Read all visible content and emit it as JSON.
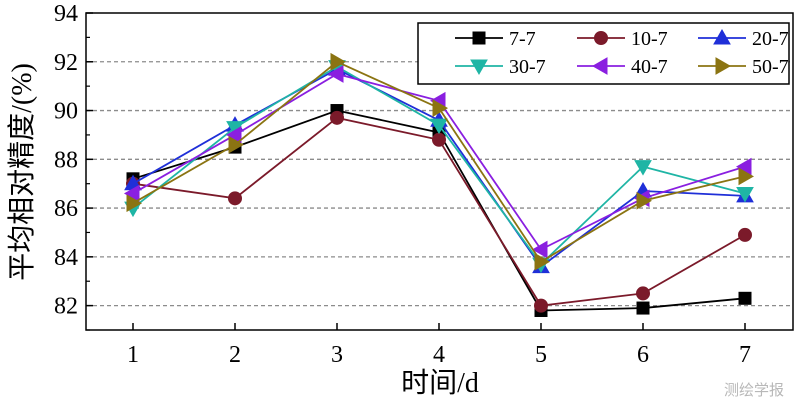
{
  "chart_data": {
    "type": "line",
    "title": "",
    "xlabel": "时间/d",
    "ylabel": "平均相对精度/(%)",
    "categories": [
      1,
      2,
      3,
      4,
      5,
      6,
      7
    ],
    "x_tick_labels": [
      "1",
      "2",
      "3",
      "4",
      "5",
      "6",
      "7"
    ],
    "y_tick_labels": [
      "82",
      "84",
      "86",
      "88",
      "90",
      "92",
      "94"
    ],
    "ylim": [
      81,
      94
    ],
    "grid": "horizontal dashed",
    "legend_position": "top-right",
    "series": [
      {
        "name": "7-7",
        "marker": "square",
        "color": "#000000",
        "values": [
          87.2,
          88.5,
          90.0,
          89.1,
          81.8,
          81.9,
          82.3
        ]
      },
      {
        "name": "10-7",
        "marker": "circle",
        "color": "#7b1a2a",
        "values": [
          87.0,
          86.4,
          89.7,
          88.8,
          82.0,
          82.5,
          84.9
        ]
      },
      {
        "name": "20-7",
        "marker": "triangle-up",
        "color": "#1f2fd8",
        "values": [
          87.0,
          89.4,
          91.7,
          89.6,
          83.6,
          86.7,
          86.5
        ]
      },
      {
        "name": "30-7",
        "marker": "triangle-down",
        "color": "#1fb5a5",
        "values": [
          86.0,
          89.3,
          91.8,
          89.4,
          83.7,
          87.7,
          86.6
        ]
      },
      {
        "name": "40-7",
        "marker": "triangle-left",
        "color": "#8a1fe0",
        "values": [
          86.6,
          89.0,
          91.5,
          90.4,
          84.3,
          86.4,
          87.7
        ]
      },
      {
        "name": "50-7",
        "marker": "triangle-right",
        "color": "#8b7412",
        "values": [
          86.2,
          88.6,
          92.0,
          90.1,
          83.8,
          86.3,
          87.3
        ]
      }
    ]
  },
  "watermark": "测绘学报"
}
